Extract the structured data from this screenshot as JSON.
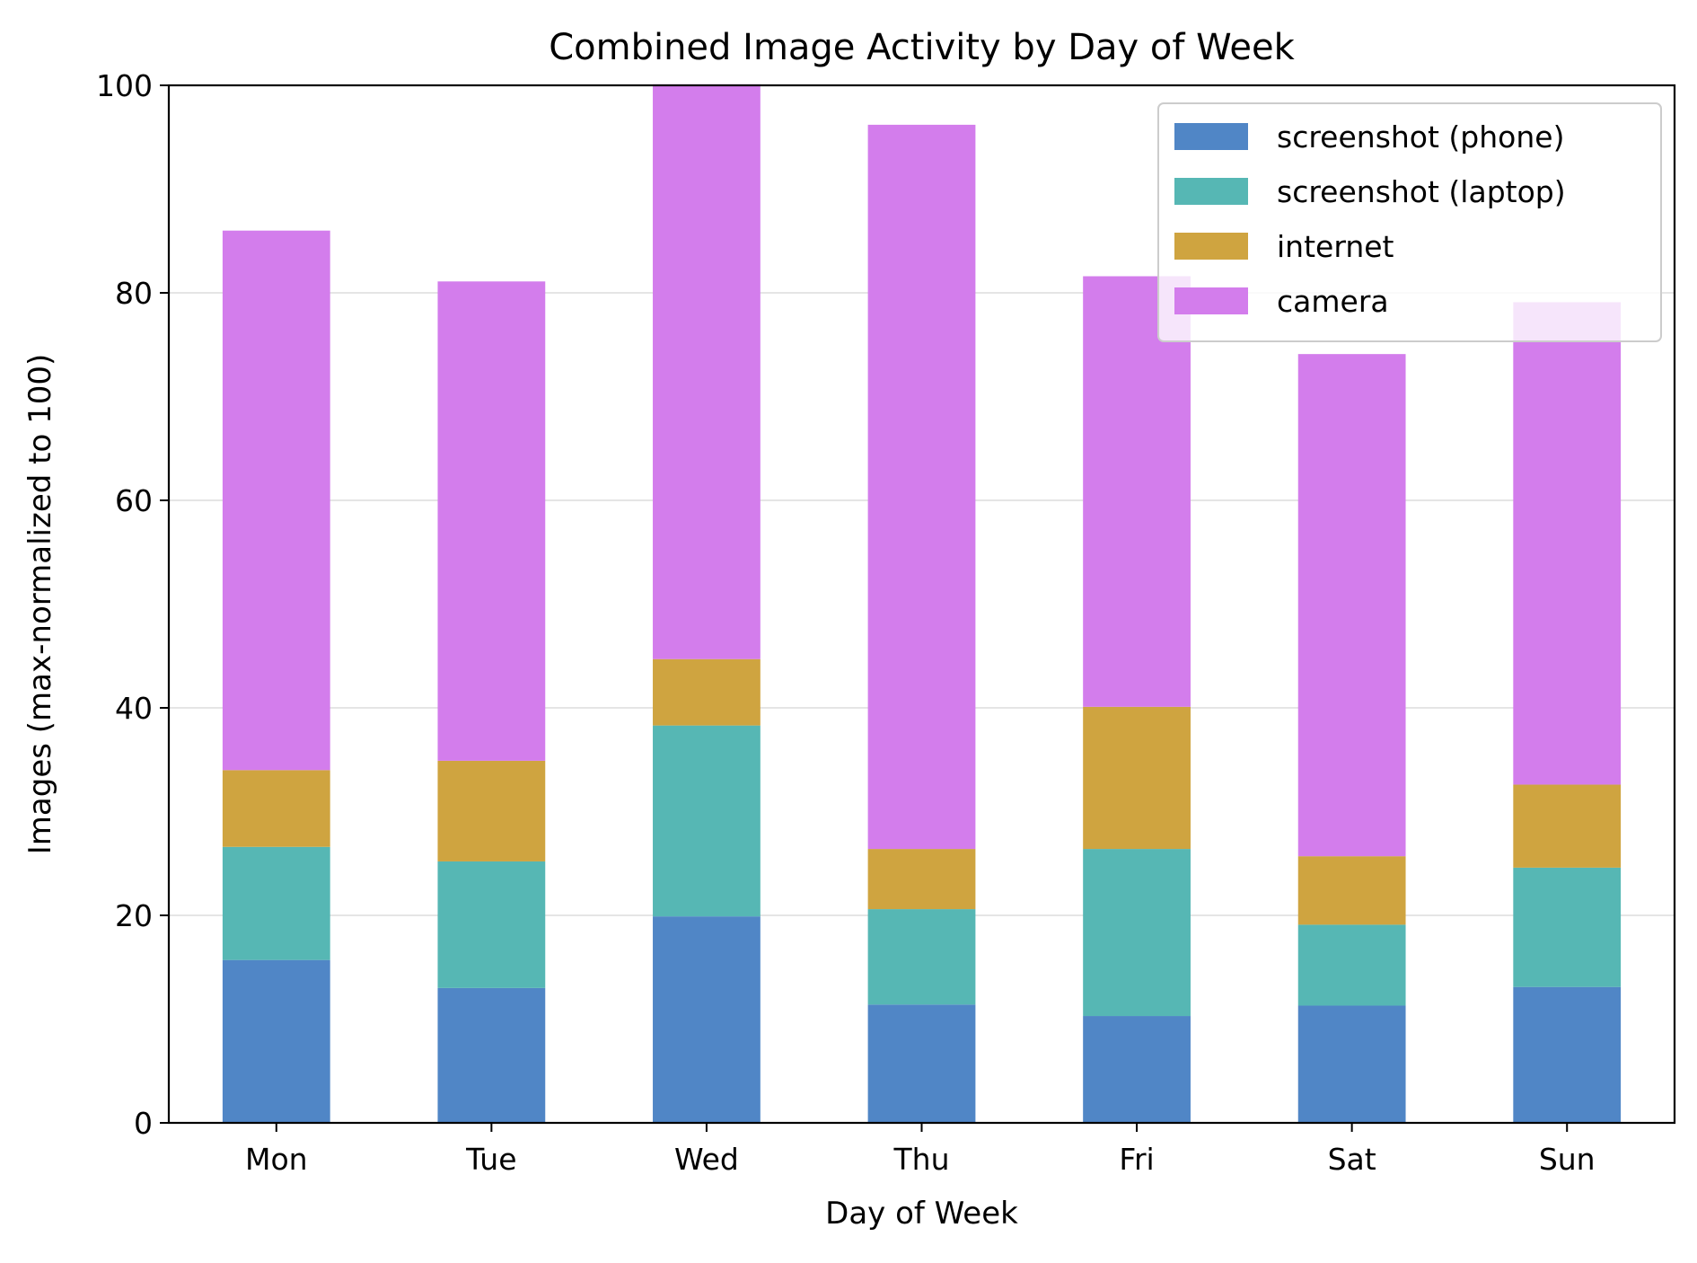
{
  "chart_data": {
    "type": "bar",
    "stacked": true,
    "title": "Combined Image Activity by Day of Week",
    "xlabel": "Day of Week",
    "ylabel": "Images (max-normalized to 100)",
    "categories": [
      "Mon",
      "Tue",
      "Wed",
      "Thu",
      "Fri",
      "Sat",
      "Sun"
    ],
    "ylim": [
      0,
      100
    ],
    "yticks": [
      0,
      20,
      40,
      60,
      80,
      100
    ],
    "grid": "y",
    "legend_position": "top-right",
    "series": [
      {
        "name": "screenshot (phone)",
        "color": "#5086c6",
        "values": [
          15.7,
          13.0,
          19.9,
          11.4,
          10.3,
          11.3,
          13.1
        ]
      },
      {
        "name": "screenshot (laptop)",
        "color": "#56b7b4",
        "values": [
          10.9,
          12.2,
          18.4,
          9.2,
          16.1,
          7.8,
          11.5
        ]
      },
      {
        "name": "internet",
        "color": "#cfa440",
        "values": [
          7.4,
          9.7,
          6.4,
          5.8,
          13.7,
          6.6,
          8.0
        ]
      },
      {
        "name": "camera",
        "color": "#d37dec",
        "values": [
          52.0,
          46.2,
          55.4,
          69.8,
          41.5,
          48.4,
          46.5
        ]
      }
    ]
  }
}
